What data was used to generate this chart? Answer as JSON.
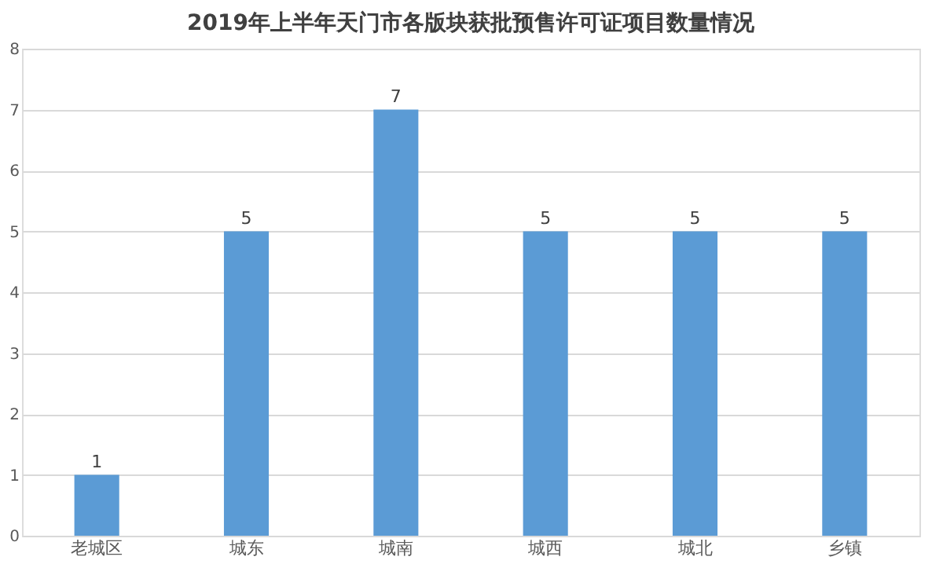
{
  "chart_data": {
    "type": "bar",
    "title": "2019年上半年天门市各版块获批预售许可证项目数量情况",
    "categories": [
      "老城区",
      "城东",
      "城南",
      "城西",
      "城北",
      "乡镇"
    ],
    "values": [
      1,
      5,
      7,
      5,
      5,
      5
    ],
    "color": "#5b9bd5",
    "ylim": [
      0,
      8
    ],
    "yticks": [
      0,
      1,
      2,
      3,
      4,
      5,
      6,
      7,
      8
    ],
    "grid": "y",
    "data_labels": true
  }
}
